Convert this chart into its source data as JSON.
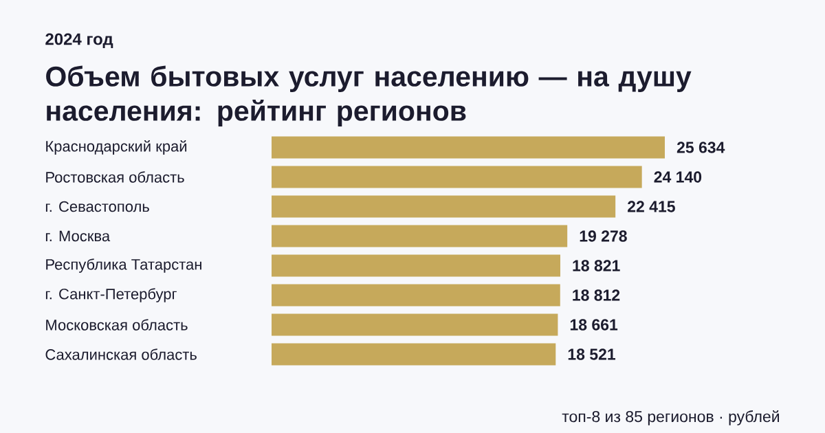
{
  "chart_data": {
    "type": "bar",
    "orientation": "horizontal",
    "title": "Объем бытовых услуг населению — на душу населения: рейтинг регионов",
    "subtitle": "2024 год",
    "categories": [
      "Краснодарский край",
      "Ростовская область",
      "г. Севастополь",
      "г. Москва",
      "Республика Татарстан",
      "г. Санкт-Петербург",
      "Московская область",
      "Сахалинская область"
    ],
    "values": [
      25634,
      24140,
      22415,
      19278,
      18821,
      18812,
      18661,
      18521
    ],
    "value_labels": [
      "25 634",
      "24 140",
      "22 415",
      "19 278",
      "18 821",
      "18 812",
      "18 661",
      "18 521"
    ],
    "color": "#c6a95b",
    "annotations": [
      "топ-8 из 85 регионов · рублей"
    ]
  }
}
